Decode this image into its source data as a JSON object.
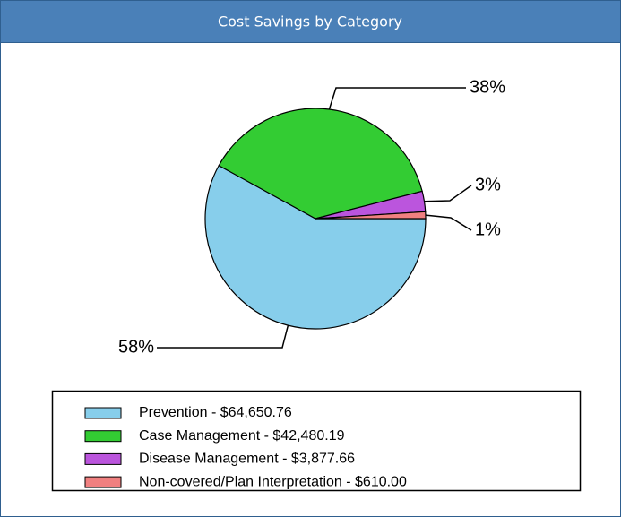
{
  "chart_data": {
    "type": "pie",
    "title": "Cost Savings by Category",
    "categories": [
      "Prevention - $64,650.76",
      "Case Management - $42,480.19",
      "Disease Management - $3,877.66",
      "Non-covered/Plan Interpretation - $610.00"
    ],
    "values": [
      58,
      38,
      3,
      1
    ],
    "value_labels": [
      "58%",
      "38%",
      "3%",
      "1%"
    ],
    "colors": [
      "#87ceeb",
      "#33cc33",
      "#bb55dd",
      "#f08080"
    ]
  }
}
